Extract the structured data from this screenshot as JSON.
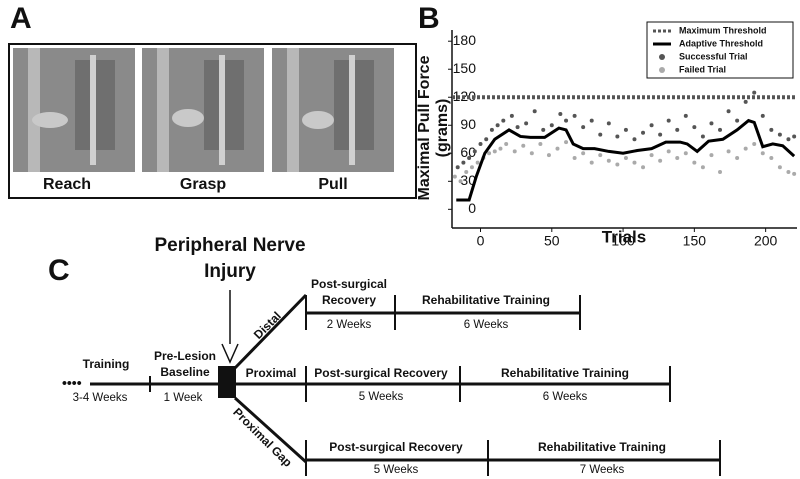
{
  "panel_a": {
    "label": "A",
    "frames": [
      "Reach",
      "Grasp",
      "Pull"
    ]
  },
  "chart_data": {
    "type": "line",
    "label": "B",
    "xlabel": "Trials",
    "ylabel": [
      "Maximal Pull Force",
      "(grams)"
    ],
    "xlim": [
      -20,
      222
    ],
    "xticks": [
      0,
      50,
      100,
      150,
      200
    ],
    "ylim": [
      -20,
      192
    ],
    "yticks": [
      0,
      30,
      60,
      90,
      120,
      150,
      180
    ],
    "legend": "upper right",
    "series": [
      {
        "name": "Maximum Threshold",
        "type": "line",
        "dashed": true,
        "color": "#555555",
        "x": [
          -20,
          222
        ],
        "values": [
          120,
          120
        ]
      },
      {
        "name": "Adaptive Threshold",
        "type": "line",
        "dashed": false,
        "color": "#000000",
        "x": [
          -17,
          -8,
          -3,
          3,
          10,
          20,
          28,
          35,
          45,
          55,
          60,
          65,
          72,
          80,
          90,
          100,
          110,
          120,
          130,
          140,
          145,
          152,
          160,
          170,
          180,
          188,
          192,
          198,
          205,
          212,
          220
        ],
        "values": [
          10,
          10,
          35,
          60,
          75,
          85,
          78,
          77,
          77,
          87,
          85,
          70,
          65,
          65,
          62,
          60,
          63,
          65,
          72,
          72,
          70,
          62,
          73,
          75,
          85,
          95,
          93,
          67,
          70,
          68,
          57
        ]
      },
      {
        "name": "Successful Trial",
        "type": "scatter",
        "color": "#555555",
        "x": [
          -16,
          -12,
          -8,
          -4,
          0,
          4,
          8,
          12,
          16,
          22,
          26,
          32,
          38,
          44,
          50,
          56,
          60,
          66,
          72,
          78,
          84,
          90,
          96,
          102,
          108,
          114,
          120,
          126,
          132,
          138,
          144,
          150,
          156,
          162,
          168,
          174,
          180,
          186,
          192,
          198,
          204,
          210,
          216,
          220
        ],
        "values": [
          45,
          50,
          55,
          62,
          70,
          75,
          85,
          90,
          95,
          100,
          88,
          92,
          105,
          85,
          90,
          102,
          95,
          100,
          88,
          95,
          80,
          92,
          78,
          85,
          75,
          82,
          90,
          80,
          95,
          85,
          100,
          88,
          78,
          92,
          85,
          105,
          95,
          115,
          125,
          100,
          85,
          80,
          75,
          78
        ]
      },
      {
        "name": "Failed Trial",
        "type": "scatter",
        "color": "#aaaaaa",
        "x": [
          -18,
          -14,
          -10,
          -6,
          -2,
          2,
          6,
          10,
          14,
          18,
          24,
          30,
          36,
          42,
          48,
          54,
          60,
          66,
          72,
          78,
          84,
          90,
          96,
          102,
          108,
          114,
          120,
          126,
          132,
          138,
          144,
          150,
          156,
          162,
          168,
          174,
          180,
          186,
          192,
          198,
          204,
          210,
          216,
          220
        ],
        "values": [
          35,
          30,
          40,
          45,
          50,
          55,
          60,
          62,
          65,
          70,
          62,
          68,
          60,
          70,
          58,
          65,
          72,
          55,
          60,
          50,
          58,
          52,
          48,
          55,
          50,
          45,
          58,
          52,
          62,
          55,
          60,
          50,
          45,
          58,
          40,
          62,
          55,
          65,
          70,
          60,
          55,
          45,
          40,
          38
        ]
      }
    ]
  },
  "panel_c": {
    "label": "C",
    "injury": [
      "Peripheral Nerve",
      "Injury"
    ],
    "training": {
      "name": "Training",
      "duration": "3-4 Weeks"
    },
    "baseline": {
      "name": [
        "Pre-Lesion",
        "Baseline"
      ],
      "duration": "1 Week"
    },
    "branches": [
      {
        "name": "Distal",
        "phases": [
          {
            "name": [
              "Post-surgical",
              "Recovery"
            ],
            "duration": "2 Weeks"
          },
          {
            "name": "Rehabilitative Training",
            "duration": "6 Weeks"
          }
        ]
      },
      {
        "name": "Proximal",
        "phases": [
          {
            "name": "Post-surgical Recovery",
            "duration": "5 Weeks"
          },
          {
            "name": "Rehabilitative Training",
            "duration": "6 Weeks"
          }
        ]
      },
      {
        "name": "Proximal Gap",
        "phases": [
          {
            "name": "Post-surgical Recovery",
            "duration": "5 Weeks"
          },
          {
            "name": "Rehabilitative Training",
            "duration": "7 Weeks"
          }
        ]
      }
    ]
  }
}
